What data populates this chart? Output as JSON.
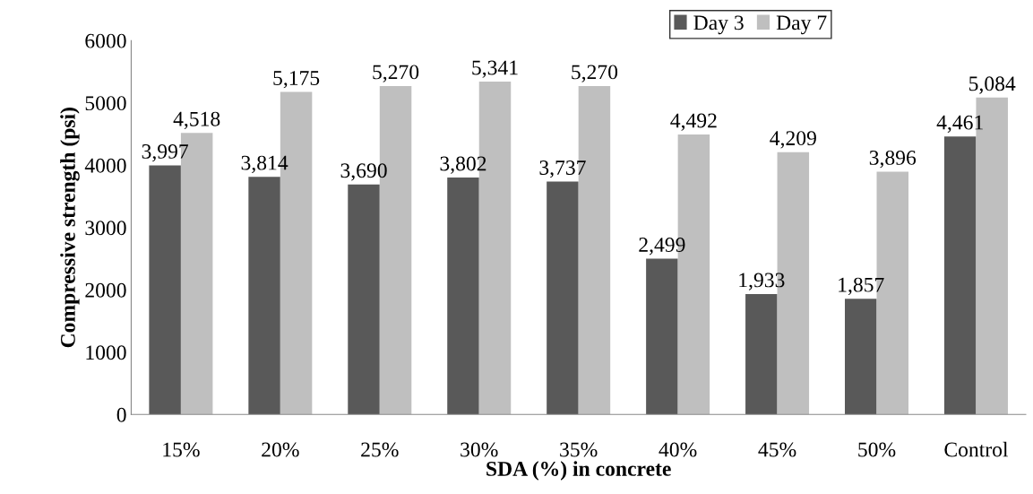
{
  "chart_data": {
    "type": "bar",
    "xlabel": "SDA (%) in concrete",
    "ylabel": "Compressive strength (psi)",
    "categories": [
      "15%",
      "20%",
      "25%",
      "30%",
      "35%",
      "40%",
      "45%",
      "50%",
      "Control"
    ],
    "series": [
      {
        "name": "Day 3",
        "color": "#595959",
        "values": [
          3997,
          3814,
          3690,
          3802,
          3737,
          2499,
          1933,
          1857,
          4461
        ],
        "value_labels": [
          "3,997",
          "3,814",
          "3,690",
          "3,802",
          "3,737",
          "2,499",
          "1,933",
          "1,857",
          "4,461"
        ]
      },
      {
        "name": "Day 7",
        "color": "#bfbfbf",
        "values": [
          4518,
          5175,
          5270,
          5341,
          5270,
          4492,
          4209,
          3896,
          5084
        ],
        "value_labels": [
          "4,518",
          "5,175",
          "5,270",
          "5,341",
          "5,270",
          "4,492",
          "4,209",
          "3,896",
          "5,084"
        ]
      }
    ],
    "ylim": [
      0,
      6000
    ],
    "yticks": [
      0,
      1000,
      2000,
      3000,
      4000,
      5000,
      6000
    ],
    "grid": false,
    "legend": "top right"
  }
}
